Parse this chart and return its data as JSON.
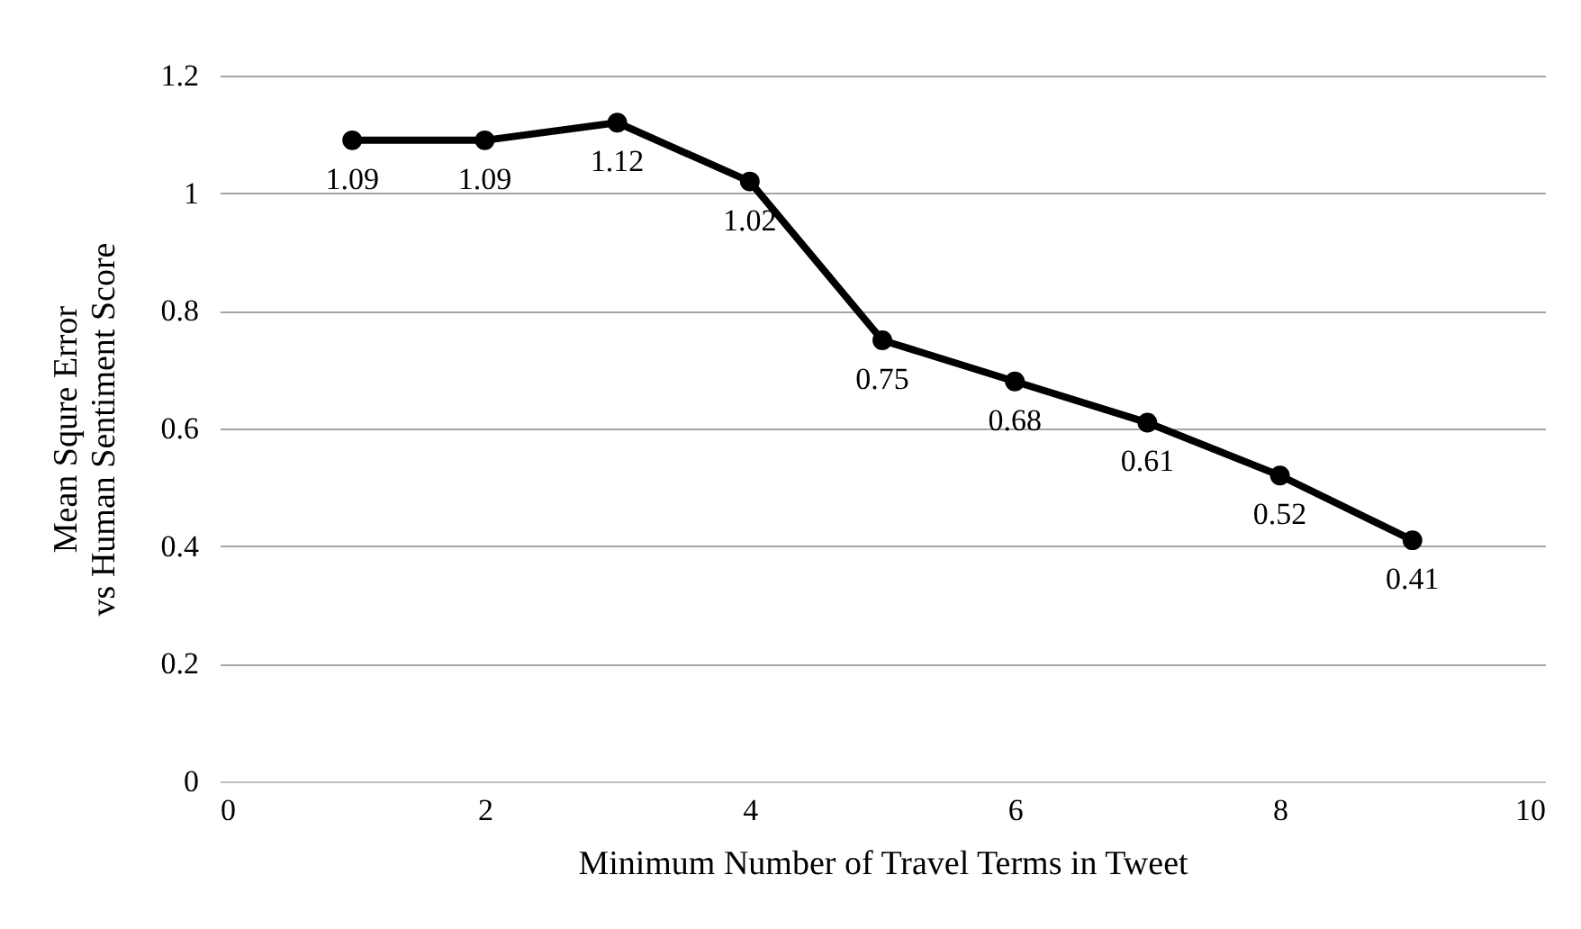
{
  "chart_data": {
    "type": "line",
    "xlabel": "Minimum Number of Travel Terms in Tweet",
    "ylabel": "Mean Squre Error\nvs Human Sentiment Score",
    "x": [
      1,
      2,
      3,
      4,
      5,
      6,
      7,
      8,
      9
    ],
    "series": [
      {
        "color": "#000000",
        "values": [
          1.09,
          1.09,
          1.12,
          1.02,
          0.75,
          0.68,
          0.61,
          0.52,
          0.41
        ]
      }
    ],
    "xlim": [
      0,
      10
    ],
    "xticks": [
      0,
      2,
      4,
      6,
      8,
      10
    ],
    "ylim": [
      0,
      1.2
    ],
    "yticks": [
      0,
      0.2,
      0.4,
      0.6,
      0.8,
      1,
      1.2
    ],
    "grid": "y",
    "marker": "circle",
    "line_style": "solid",
    "data_labels": true
  }
}
